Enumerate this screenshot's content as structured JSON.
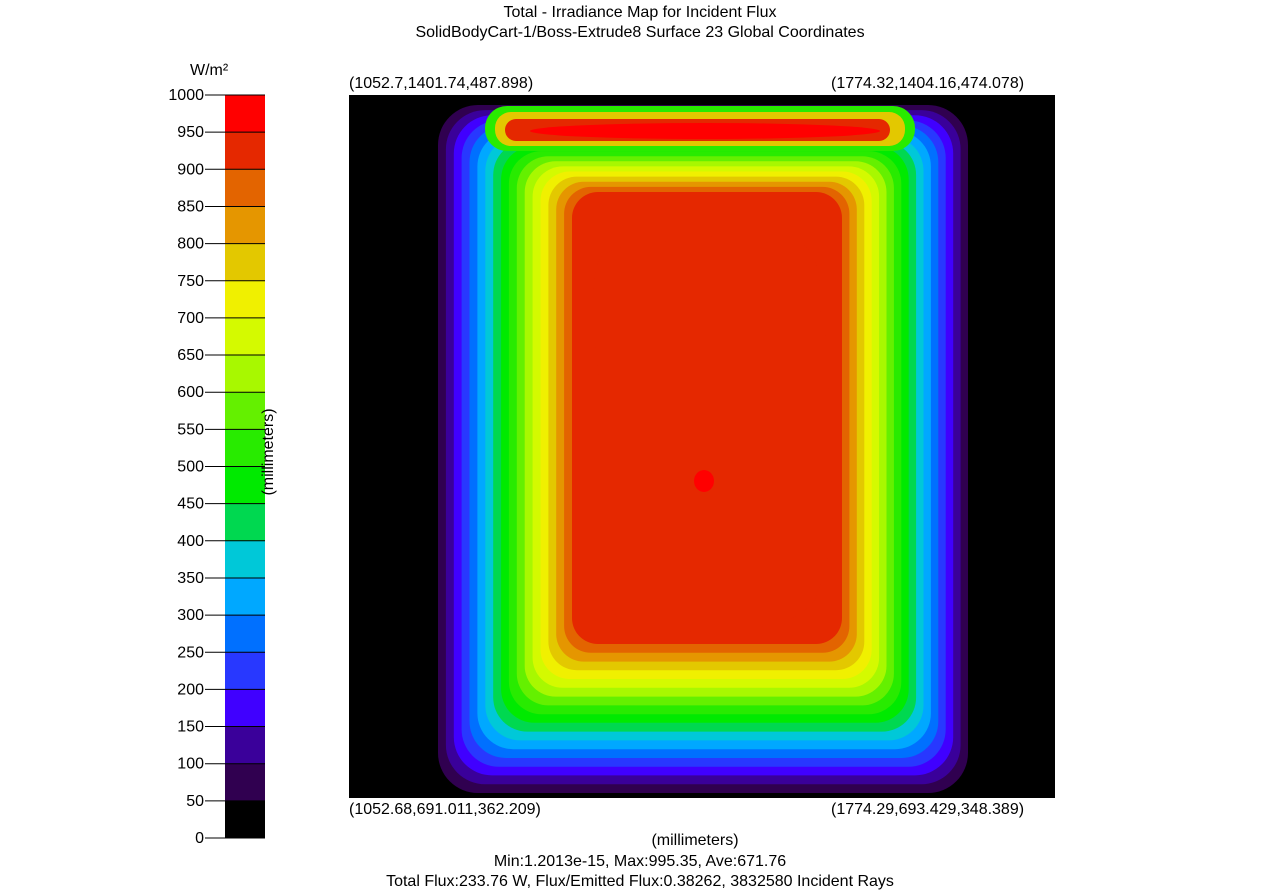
{
  "chart_data": {
    "type": "heatmap",
    "title": "Total - Irradiance Map for Incident Flux",
    "subtitle": "SolidBodyCart-1/Boss-Extrude8 Surface 23    Global Coordinates",
    "xlabel": "(millimeters)",
    "ylabel": "(millimeters)",
    "colorbar": {
      "unit": "W/m²",
      "range": [
        0,
        1000
      ],
      "ticks": [
        "1000",
        "950",
        "900",
        "850",
        "800",
        "750",
        "700",
        "650",
        "600",
        "550",
        "500",
        "450",
        "400",
        "350",
        "300",
        "250",
        "200",
        "150",
        "100",
        "50",
        "0"
      ],
      "bands_top_to_bottom": [
        "#ff0000",
        "#e52800",
        "#e36400",
        "#e59600",
        "#e3c800",
        "#f0f000",
        "#d4fa00",
        "#a8f800",
        "#64f000",
        "#28eb00",
        "#00ea00",
        "#00d850",
        "#00c8d8",
        "#00a8ff",
        "#0070ff",
        "#2838ff",
        "#4000ff",
        "#3a009a",
        "#300050",
        "#000000"
      ]
    },
    "corners": {
      "top_left": "(1052.7,1401.74,487.898)",
      "top_right": "(1774.32,1404.16,474.078)",
      "bottom_left": "(1052.68,691.011,362.209)",
      "bottom_right": "(1774.29,693.429,348.389)"
    },
    "stats": "Min:1.2013e-15, Max:995.35, Ave:671.76",
    "flux": "Total Flux:233.76 W, Flux/Emitted Flux:0.38262, 3832580 Incident Rays",
    "min": 1.2013e-15,
    "max": 995.35,
    "ave": 671.76
  }
}
